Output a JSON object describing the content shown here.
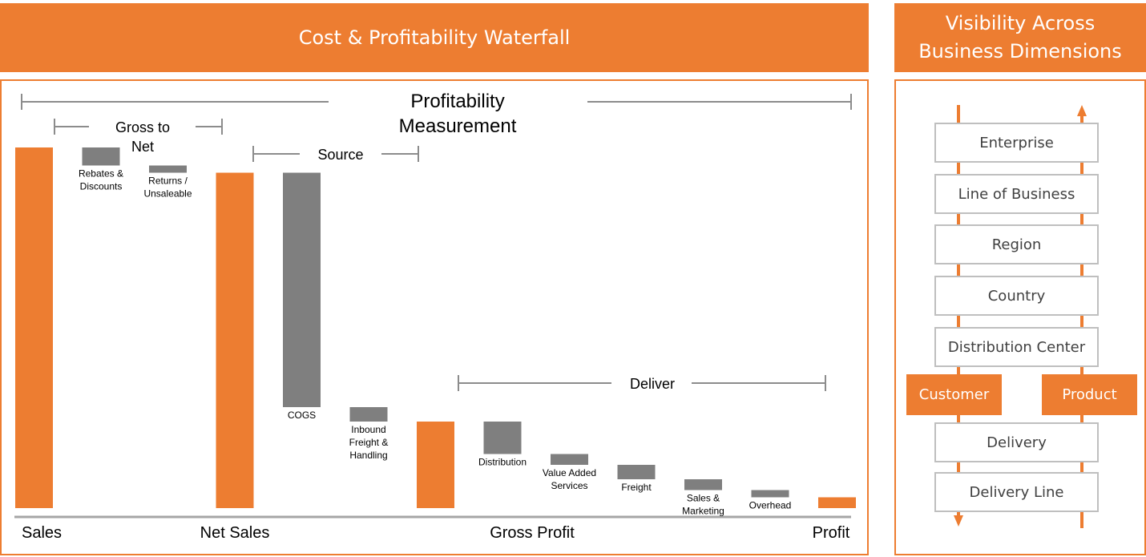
{
  "header": {
    "title": "Cost & Profitability Waterfall",
    "right_title_line1": "Visibility Across",
    "right_title_line2": "Business Dimensions"
  },
  "brackets": {
    "profitability_line1": "Profitability",
    "profitability_line2": "Measurement",
    "gross_to_net_line1": "Gross to",
    "gross_to_net_line2": "Net",
    "source": "Source",
    "deliver": "Deliver"
  },
  "colors": {
    "accent": "#ED7D31",
    "decrement": "#7F7F7F",
    "axis": "#A6A6A6",
    "bracket": "#8C8C8C"
  },
  "chart_data": {
    "type": "bar",
    "subtype": "waterfall",
    "ylim": [
      0,
      100
    ],
    "bars": [
      {
        "label_lines": [
          "Sales"
        ],
        "kind": "total",
        "start": 0,
        "end": 100,
        "label_size": "large"
      },
      {
        "label_lines": [
          "Rebates &",
          "Discounts"
        ],
        "kind": "decrement",
        "start": 95,
        "end": 100,
        "label_size": "small"
      },
      {
        "label_lines": [
          "Returns /",
          "Unsaleable"
        ],
        "kind": "decrement",
        "start": 93,
        "end": 95,
        "label_size": "small"
      },
      {
        "label_lines": [
          "Net Sales"
        ],
        "kind": "total",
        "start": 0,
        "end": 93,
        "label_size": "large"
      },
      {
        "label_lines": [
          "COGS"
        ],
        "kind": "decrement",
        "start": 28,
        "end": 93,
        "label_size": "small"
      },
      {
        "label_lines": [
          "Inbound",
          "Freight &",
          "Handling"
        ],
        "kind": "decrement",
        "start": 24,
        "end": 28,
        "label_size": "small"
      },
      {
        "label_lines": [
          "Gross Profit"
        ],
        "kind": "total",
        "start": 0,
        "end": 24,
        "label_size": "large"
      },
      {
        "label_lines": [
          "Distribution"
        ],
        "kind": "decrement",
        "start": 15,
        "end": 24,
        "label_size": "small"
      },
      {
        "label_lines": [
          "Value Added",
          "Services"
        ],
        "kind": "decrement",
        "start": 12,
        "end": 15,
        "label_size": "small"
      },
      {
        "label_lines": [
          "Freight"
        ],
        "kind": "decrement",
        "start": 8,
        "end": 12,
        "label_size": "small"
      },
      {
        "label_lines": [
          "Sales &",
          "Marketing"
        ],
        "kind": "decrement",
        "start": 5,
        "end": 8,
        "label_size": "small"
      },
      {
        "label_lines": [
          "Overhead"
        ],
        "kind": "decrement",
        "start": 3,
        "end": 5,
        "label_size": "small"
      },
      {
        "label_lines": [
          "Profit"
        ],
        "kind": "total",
        "start": 0,
        "end": 3,
        "label_size": "large"
      }
    ]
  },
  "dimensions": {
    "levels": [
      "Enterprise",
      "Line of Business",
      "Region",
      "Country",
      "Distribution Center"
    ],
    "left_tag": "Customer",
    "right_tag": "Product",
    "lower_levels": [
      "Delivery",
      "Delivery Line"
    ]
  }
}
